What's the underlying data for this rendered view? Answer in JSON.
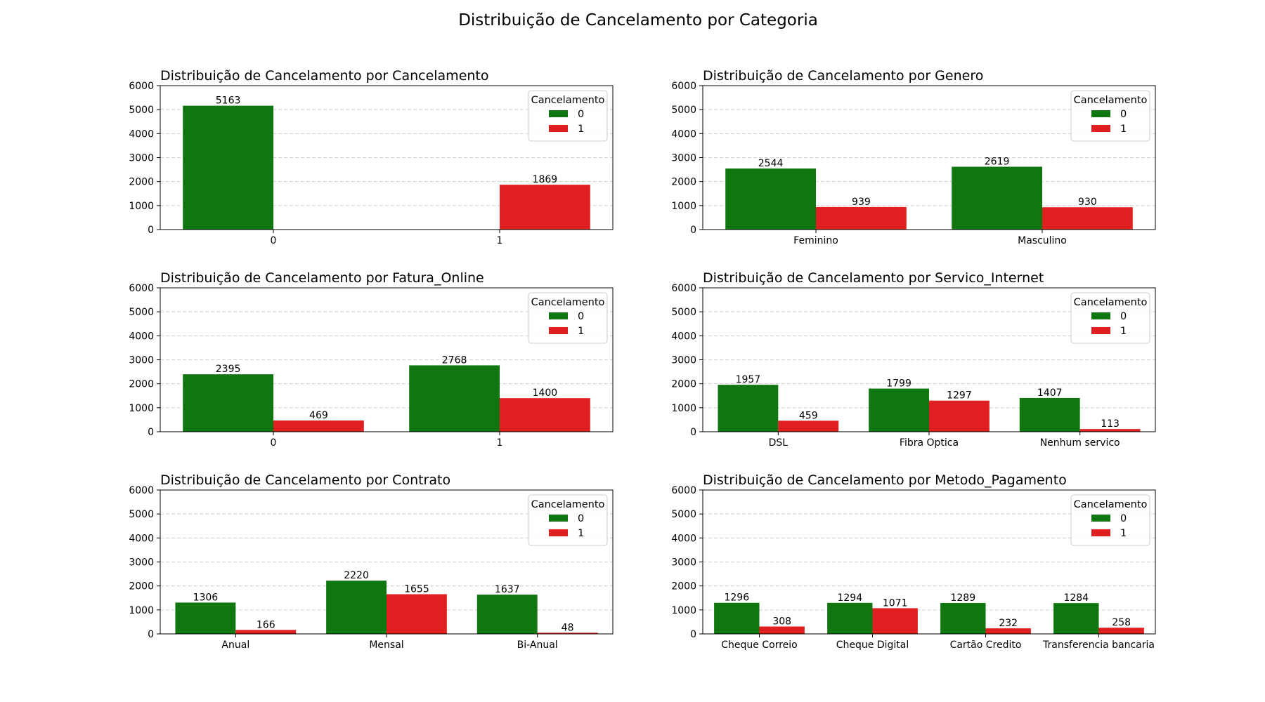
{
  "suptitle": "Distribuição de Cancelamento por Categoria",
  "chart_data": [
    {
      "type": "bar",
      "title": "Distribuição de Cancelamento por Cancelamento",
      "xlabel": "",
      "ylabel": "",
      "categories": [
        "0",
        "1"
      ],
      "series": [
        {
          "name": "0",
          "values": [
            5163,
            0
          ]
        },
        {
          "name": "1",
          "values": [
            0,
            1869
          ]
        }
      ],
      "bar_labels": [
        [
          5163,
          null
        ],
        [
          null,
          1869
        ]
      ],
      "ylim": [
        0,
        6000
      ],
      "yticks": [
        0,
        1000,
        2000,
        3000,
        4000,
        5000,
        6000
      ],
      "grid": "y dashed",
      "legend": {
        "title": "Cancelamento",
        "labels": [
          "0",
          "1"
        ],
        "location": "upper right"
      }
    },
    {
      "type": "bar",
      "title": "Distribuição de Cancelamento por Genero",
      "xlabel": "",
      "ylabel": "",
      "categories": [
        "Feminino",
        "Masculino"
      ],
      "series": [
        {
          "name": "0",
          "values": [
            2544,
            2619
          ]
        },
        {
          "name": "1",
          "values": [
            939,
            930
          ]
        }
      ],
      "ylim": [
        0,
        6000
      ],
      "yticks": [
        0,
        1000,
        2000,
        3000,
        4000,
        5000,
        6000
      ],
      "grid": "y dashed",
      "legend": {
        "title": "Cancelamento",
        "labels": [
          "0",
          "1"
        ],
        "location": "upper right"
      }
    },
    {
      "type": "bar",
      "title": "Distribuição de Cancelamento por Fatura_Online",
      "xlabel": "",
      "ylabel": "",
      "categories": [
        "0",
        "1"
      ],
      "series": [
        {
          "name": "0",
          "values": [
            2395,
            2768
          ]
        },
        {
          "name": "1",
          "values": [
            469,
            1400
          ]
        }
      ],
      "ylim": [
        0,
        6000
      ],
      "yticks": [
        0,
        1000,
        2000,
        3000,
        4000,
        5000,
        6000
      ],
      "grid": "y dashed",
      "legend": {
        "title": "Cancelamento",
        "labels": [
          "0",
          "1"
        ],
        "location": "upper right"
      }
    },
    {
      "type": "bar",
      "title": "Distribuição de Cancelamento por Servico_Internet",
      "xlabel": "",
      "ylabel": "",
      "categories": [
        "DSL",
        "Fibra Optica",
        "Nenhum servico"
      ],
      "series": [
        {
          "name": "0",
          "values": [
            1957,
            1799,
            1407
          ]
        },
        {
          "name": "1",
          "values": [
            459,
            1297,
            113
          ]
        }
      ],
      "ylim": [
        0,
        6000
      ],
      "yticks": [
        0,
        1000,
        2000,
        3000,
        4000,
        5000,
        6000
      ],
      "grid": "y dashed",
      "legend": {
        "title": "Cancelamento",
        "labels": [
          "0",
          "1"
        ],
        "location": "upper right"
      }
    },
    {
      "type": "bar",
      "title": "Distribuição de Cancelamento por Contrato",
      "xlabel": "",
      "ylabel": "",
      "categories": [
        "Anual",
        "Mensal",
        "Bi-Anual"
      ],
      "series": [
        {
          "name": "0",
          "values": [
            1306,
            2220,
            1637
          ]
        },
        {
          "name": "1",
          "values": [
            166,
            1655,
            48
          ]
        }
      ],
      "ylim": [
        0,
        6000
      ],
      "yticks": [
        0,
        1000,
        2000,
        3000,
        4000,
        5000,
        6000
      ],
      "grid": "y dashed",
      "legend": {
        "title": "Cancelamento",
        "labels": [
          "0",
          "1"
        ],
        "location": "upper right"
      }
    },
    {
      "type": "bar",
      "title": "Distribuição de Cancelamento por Metodo_Pagamento",
      "xlabel": "",
      "ylabel": "",
      "categories": [
        "Cheque Correio",
        "Cheque Digital",
        "Cartão Credito",
        "Transferencia bancaria"
      ],
      "series": [
        {
          "name": "0",
          "values": [
            1296,
            1294,
            1289,
            1284
          ]
        },
        {
          "name": "1",
          "values": [
            308,
            1071,
            232,
            258
          ]
        }
      ],
      "ylim": [
        0,
        6000
      ],
      "yticks": [
        0,
        1000,
        2000,
        3000,
        4000,
        5000,
        6000
      ],
      "grid": "y dashed",
      "legend": {
        "title": "Cancelamento",
        "labels": [
          "0",
          "1"
        ],
        "location": "upper right"
      }
    }
  ],
  "colors": {
    "series_0": "#107710",
    "series_1": "#e02020",
    "grid": "#cfcfcf",
    "axis": "#000000"
  }
}
